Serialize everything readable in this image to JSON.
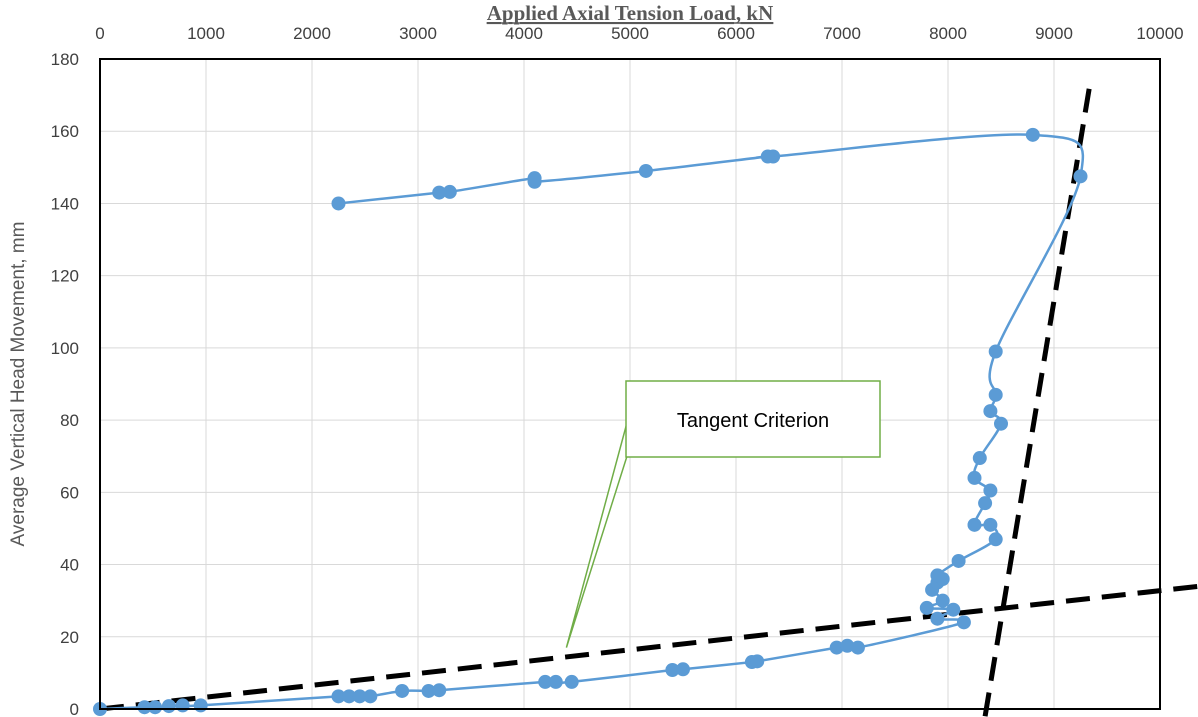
{
  "chart_data": {
    "type": "scatter",
    "title": "",
    "xlabel": "Applied Axial Tension Load, kN",
    "ylabel": "Average Vertical Head Movement, mm",
    "xlim": [
      0,
      10000
    ],
    "ylim": [
      0,
      180
    ],
    "x_ticks": [
      0,
      1000,
      2000,
      3000,
      4000,
      5000,
      6000,
      7000,
      8000,
      9000,
      10000
    ],
    "y_ticks": [
      0,
      20,
      40,
      60,
      80,
      100,
      120,
      140,
      160,
      180
    ],
    "x_axis_position": "top",
    "grid": true,
    "legend": "none",
    "colors": {
      "series": "#5b9bd5",
      "tangent": "#000000",
      "callout_border": "#70ad47",
      "grid": "#d9d9d9"
    },
    "series": [
      {
        "points": [
          [
            0,
            0
          ],
          [
            420,
            0.5
          ],
          [
            520,
            0.5
          ],
          [
            650,
            0.8
          ],
          [
            780,
            1
          ],
          [
            950,
            1
          ],
          [
            2250,
            3.5
          ],
          [
            2350,
            3.5
          ],
          [
            2450,
            3.5
          ],
          [
            2550,
            3.5
          ],
          [
            2850,
            5
          ],
          [
            3100,
            5
          ],
          [
            3200,
            5.2
          ],
          [
            4200,
            7.5
          ],
          [
            4300,
            7.5
          ],
          [
            4450,
            7.5
          ],
          [
            5400,
            10.8
          ],
          [
            5500,
            11
          ],
          [
            6150,
            13
          ],
          [
            6200,
            13.2
          ],
          [
            6950,
            17
          ],
          [
            7050,
            17.5
          ],
          [
            7150,
            17
          ],
          [
            8150,
            24
          ],
          [
            7900,
            25
          ],
          [
            8050,
            27.5
          ],
          [
            7800,
            28
          ],
          [
            7950,
            30
          ],
          [
            7850,
            33
          ],
          [
            7900,
            35
          ],
          [
            7950,
            36
          ],
          [
            7900,
            37
          ],
          [
            8100,
            41
          ],
          [
            8450,
            47
          ],
          [
            8400,
            51
          ],
          [
            8250,
            51
          ],
          [
            8350,
            57
          ],
          [
            8400,
            60.5
          ],
          [
            8250,
            64
          ],
          [
            8300,
            69.5
          ],
          [
            8500,
            79
          ],
          [
            8400,
            82.5
          ],
          [
            8450,
            87
          ],
          [
            8450,
            99
          ],
          [
            9250,
            147.5
          ],
          [
            8800,
            159
          ],
          [
            6350,
            153
          ],
          [
            6300,
            153
          ],
          [
            5150,
            149
          ],
          [
            4100,
            146
          ],
          [
            4100,
            147
          ],
          [
            3300,
            143.2
          ],
          [
            3200,
            143
          ],
          [
            2250,
            140
          ]
        ]
      }
    ],
    "tangent_lines": [
      {
        "from": [
          0,
          0
        ],
        "to": [
          11900,
          39
        ]
      },
      {
        "from": [
          8350,
          -2
        ],
        "to": [
          9350,
          175
        ]
      }
    ],
    "annotations": [
      {
        "text": "Tangent Criterion",
        "pointer_to": [
          4400,
          17
        ]
      }
    ]
  }
}
